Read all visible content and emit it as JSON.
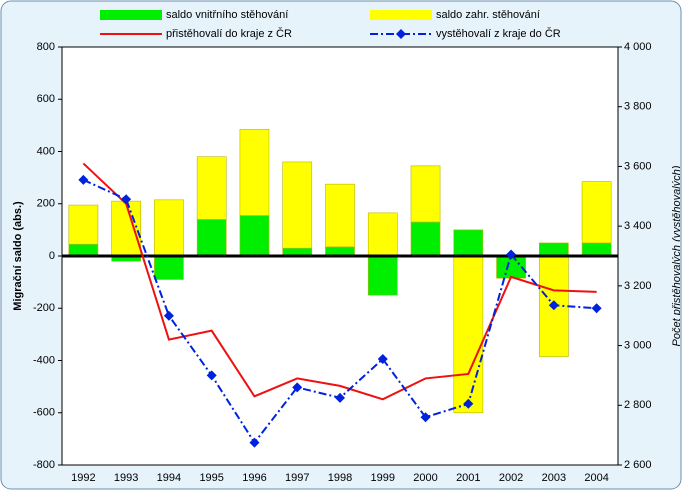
{
  "chart_data": {
    "type": "bar",
    "categories": [
      "1992",
      "1993",
      "1994",
      "1995",
      "1996",
      "1997",
      "1998",
      "1999",
      "2000",
      "2001",
      "2002",
      "2003",
      "2004"
    ],
    "series": [
      {
        "name": "saldo vnitřního stěhování",
        "type": "bar",
        "color": "#00ee00",
        "values": [
          45,
          -20,
          -90,
          140,
          155,
          30,
          35,
          -150,
          130,
          100,
          -85,
          50,
          50
        ]
      },
      {
        "name": "saldo zahr. stěhování",
        "type": "bar",
        "color": "#ffff00",
        "values": [
          150,
          210,
          215,
          240,
          330,
          330,
          240,
          165,
          215,
          -600,
          0,
          -385,
          235
        ]
      },
      {
        "name": "přistěhovalí do kraje z ČR",
        "type": "line",
        "axis": "y2",
        "color": "#ee1111",
        "values": [
          3610,
          3475,
          3020,
          3050,
          2830,
          2890,
          2865,
          2820,
          2890,
          2905,
          3230,
          3185,
          3180
        ]
      },
      {
        "name": "vystěhovalí z kraje do ČR",
        "type": "line",
        "axis": "y2",
        "color": "#0022dd",
        "dash": "dashdot",
        "marker": "diamond",
        "values": [
          3555,
          3490,
          3100,
          2900,
          2675,
          2860,
          2825,
          2955,
          2760,
          2805,
          3305,
          3135,
          3125
        ]
      }
    ],
    "ylabel": "Migrační saldo (abs.)",
    "y2label": "Počet přistěhovalých (vystěhovalých)",
    "ylim": [
      -800,
      800
    ],
    "yticks": [
      -800,
      -600,
      -400,
      -200,
      0,
      200,
      400,
      600,
      800
    ],
    "y2lim": [
      2600,
      4000
    ],
    "y2ticks": [
      {
        "value": 2600,
        "label": "2 600"
      },
      {
        "value": 2800,
        "label": "2 800"
      },
      {
        "value": 3000,
        "label": "3 000"
      },
      {
        "value": 3200,
        "label": "3 200"
      },
      {
        "value": 3400,
        "label": "3 400"
      },
      {
        "value": 3600,
        "label": "3 600"
      },
      {
        "value": 3800,
        "label": "3 800"
      },
      {
        "value": 4000,
        "label": "4 000"
      }
    ],
    "grid": false
  }
}
